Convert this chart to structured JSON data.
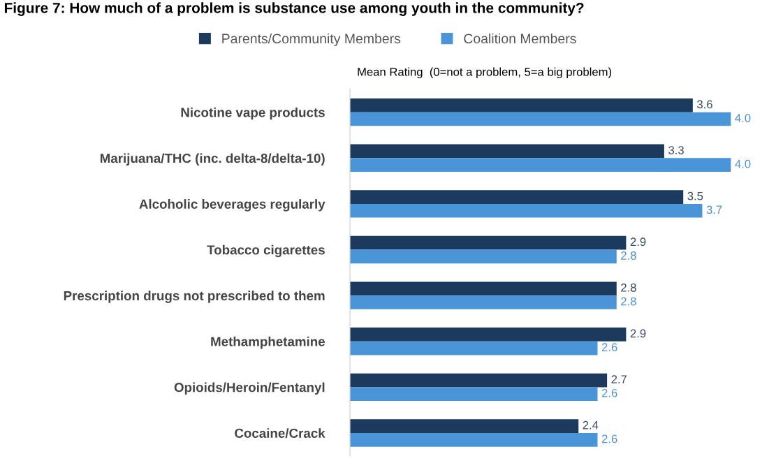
{
  "chart_data": {
    "type": "bar",
    "orientation": "horizontal",
    "title": "Figure 7: How much of a problem is substance use among youth in the community?",
    "subtitle": "Mean Rating  (0=not a problem, 5=a big problem)",
    "categories": [
      "Nicotine vape products",
      "Marijuana/THC (inc. delta-8/delta-10)",
      "Alcoholic beverages regularly",
      "Tobacco cigarettes",
      "Prescription drugs not prescribed to them",
      "Methamphetamine",
      "Opioids/Heroin/Fentanyl",
      "Cocaine/Crack"
    ],
    "series": [
      {
        "name": "Parents/Community Members",
        "color": "#1c3a5e",
        "values": [
          3.6,
          3.3,
          3.5,
          2.9,
          2.8,
          2.9,
          2.7,
          2.4
        ],
        "value_labels": [
          "3.6",
          "3.3",
          "3.5",
          "2.9",
          "2.8",
          "2.9",
          "2.7",
          "2.4"
        ]
      },
      {
        "name": "Coalition Members",
        "color": "#4a94d8",
        "values": [
          4.0,
          4.0,
          3.7,
          2.8,
          2.8,
          2.6,
          2.6,
          2.6
        ],
        "value_labels": [
          "4.0",
          "4.0",
          "3.7",
          "2.8",
          "2.8",
          "2.6",
          "2.6",
          "2.6"
        ]
      }
    ],
    "legend": "top",
    "grid": false,
    "tick_labels": "y"
  }
}
